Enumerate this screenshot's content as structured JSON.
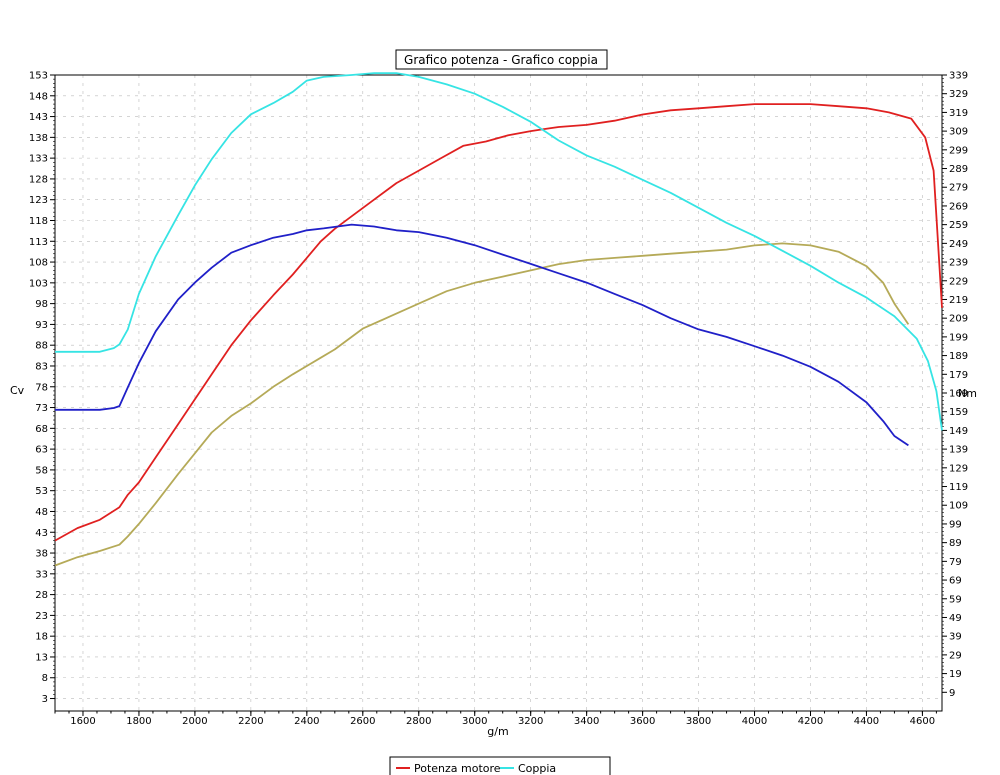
{
  "chart_data": {
    "type": "line",
    "title": "Grafico potenza - Grafico coppia",
    "xlabel": "g/m",
    "ylabel_left": "Cv",
    "ylabel_right": "Nm",
    "xlim": [
      1500,
      4670
    ],
    "ylim_left": [
      0,
      153
    ],
    "ylim_right": [
      -1,
      339
    ],
    "x_ticks": [
      1600,
      1800,
      2000,
      2200,
      2400,
      2600,
      2800,
      3000,
      3200,
      3400,
      3600,
      3800,
      4000,
      4200,
      4400,
      4600
    ],
    "y_ticks_left": [
      3,
      8,
      13,
      18,
      23,
      28,
      33,
      38,
      43,
      48,
      53,
      58,
      63,
      68,
      73,
      78,
      83,
      88,
      93,
      98,
      103,
      108,
      113,
      118,
      123,
      128,
      133,
      138,
      143,
      148,
      153
    ],
    "y_ticks_right": [
      9,
      19,
      29,
      39,
      49,
      59,
      69,
      79,
      89,
      99,
      109,
      119,
      129,
      139,
      149,
      159,
      169,
      179,
      189,
      199,
      209,
      219,
      229,
      239,
      249,
      259,
      269,
      279,
      289,
      299,
      309,
      319,
      329,
      339
    ],
    "grid": true,
    "legend_position": "bottom",
    "series": [
      {
        "name": "Potenza motore",
        "axis": "left",
        "color": "#e02020",
        "x": [
          1500,
          1580,
          1660,
          1730,
          1760,
          1800,
          1860,
          1940,
          2000,
          2060,
          2130,
          2200,
          2280,
          2350,
          2400,
          2450,
          2500,
          2560,
          2640,
          2720,
          2800,
          2880,
          2960,
          3040,
          3120,
          3200,
          3250,
          3300,
          3400,
          3500,
          3600,
          3700,
          3800,
          3900,
          4000,
          4100,
          4200,
          4300,
          4400,
          4480,
          4560,
          4610,
          4640,
          4670
        ],
        "values": [
          41,
          44,
          46,
          49,
          52,
          55,
          61,
          69,
          75,
          81,
          88,
          94,
          100,
          105,
          109,
          113,
          116,
          119,
          123,
          127,
          130,
          133,
          136,
          137,
          138.5,
          139.5,
          140,
          140.5,
          141,
          142,
          143.5,
          144.5,
          145,
          145.5,
          146,
          146,
          146,
          145.5,
          145,
          144,
          142.5,
          138,
          130,
          97
        ]
      },
      {
        "name": "",
        "axis": "left",
        "color": "#b5aa58",
        "x": [
          1500,
          1580,
          1660,
          1730,
          1760,
          1800,
          1860,
          1940,
          2000,
          2060,
          2130,
          2200,
          2280,
          2350,
          2400,
          2450,
          2500,
          2600,
          2700,
          2800,
          2900,
          3000,
          3100,
          3200,
          3300,
          3400,
          3500,
          3600,
          3700,
          3800,
          3900,
          4000,
          4100,
          4200,
          4300,
          4400,
          4460,
          4500,
          4550
        ],
        "values": [
          35,
          37,
          38.5,
          40,
          42,
          45,
          50,
          57,
          62,
          67,
          71,
          74,
          78,
          81,
          83,
          85,
          87,
          92,
          95,
          98,
          101,
          103,
          104.5,
          106,
          107.5,
          108.5,
          109,
          109.5,
          110,
          110.5,
          111,
          112,
          112.5,
          112,
          110.5,
          107,
          103,
          98,
          93
        ]
      },
      {
        "name": "Coppia",
        "axis": "right",
        "color": "#36e4e4",
        "x": [
          1500,
          1580,
          1660,
          1710,
          1730,
          1760,
          1800,
          1860,
          1940,
          2000,
          2060,
          2130,
          2200,
          2280,
          2350,
          2400,
          2460,
          2560,
          2640,
          2720,
          2800,
          2900,
          3000,
          3100,
          3200,
          3300,
          3400,
          3500,
          3600,
          3700,
          3800,
          3900,
          4000,
          4100,
          4200,
          4300,
          4400,
          4500,
          4580,
          4620,
          4650,
          4670
        ],
        "values": [
          191,
          191,
          191,
          193,
          195,
          203,
          222,
          242,
          264,
          280,
          294,
          308,
          318,
          324,
          330,
          336,
          338,
          339,
          340,
          340,
          338,
          334,
          329,
          322,
          314,
          304,
          296,
          290,
          283,
          276,
          268,
          260,
          253,
          245,
          237,
          228,
          220,
          210,
          198,
          186,
          170,
          149
        ]
      },
      {
        "name": "",
        "axis": "right",
        "color": "#2020c8",
        "x": [
          1500,
          1580,
          1660,
          1710,
          1730,
          1760,
          1800,
          1860,
          1940,
          2000,
          2060,
          2130,
          2200,
          2280,
          2350,
          2400,
          2460,
          2560,
          2640,
          2720,
          2800,
          2900,
          3000,
          3100,
          3200,
          3300,
          3400,
          3500,
          3600,
          3700,
          3800,
          3900,
          4000,
          4100,
          4200,
          4300,
          4400,
          4460,
          4500,
          4550
        ],
        "values": [
          160,
          160,
          160,
          161,
          162,
          172,
          185,
          202,
          219,
          228,
          236,
          244,
          248,
          252,
          254,
          256,
          257,
          259,
          258,
          256,
          255,
          252,
          248,
          243,
          238,
          233,
          228,
          222,
          216,
          209,
          203,
          199,
          194,
          189,
          183,
          175,
          164,
          154,
          146,
          141
        ]
      }
    ],
    "legend_labels": [
      "Potenza motore",
      "Coppia"
    ]
  }
}
